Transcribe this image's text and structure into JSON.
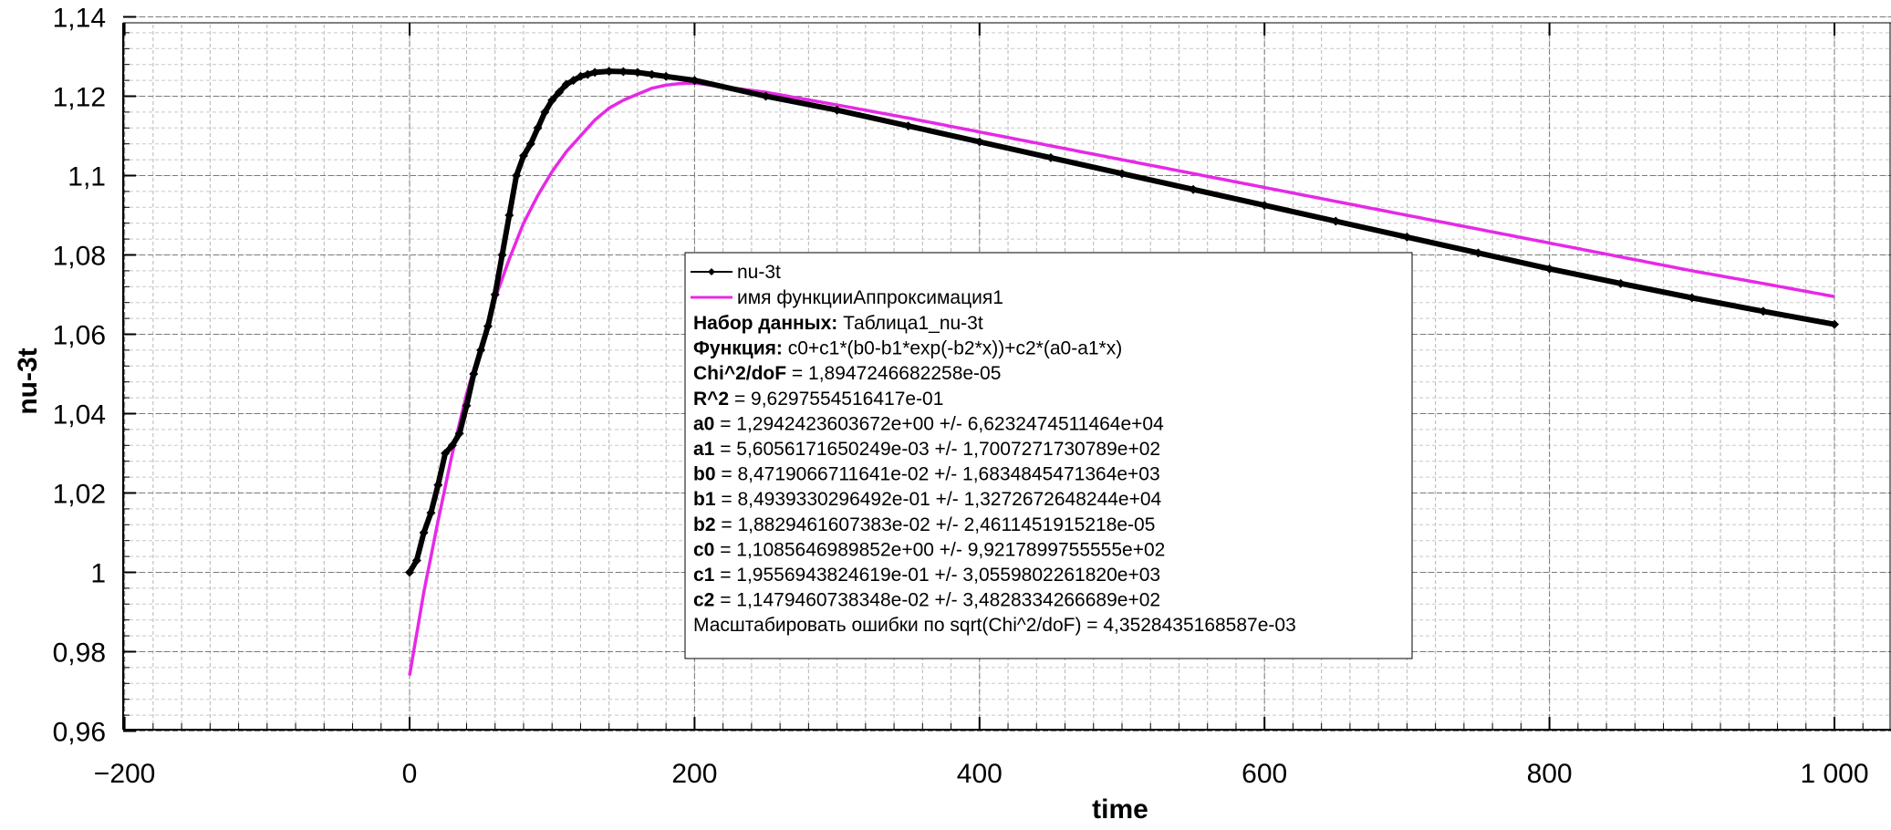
{
  "chart_data": {
    "type": "line",
    "xlabel": "time",
    "ylabel": "nu-3t",
    "xlim": [
      -200,
      1040
    ],
    "ylim": [
      0.96,
      1.14
    ],
    "x_ticks": [
      -200,
      0,
      200,
      400,
      600,
      800,
      1000
    ],
    "x_tick_labels": [
      "−200",
      "0",
      "200",
      "400",
      "600",
      "800",
      "1 000"
    ],
    "y_ticks": [
      0.96,
      0.98,
      1.0,
      1.02,
      1.04,
      1.06,
      1.08,
      1.1,
      1.12,
      1.14
    ],
    "y_tick_labels": [
      "0,96",
      "0,98",
      "1",
      "1,02",
      "1,04",
      "1,06",
      "1,08",
      "1,1",
      "1,12",
      "1,14"
    ],
    "grid": true,
    "legend_position": "center",
    "series": [
      {
        "name": "nu-3t",
        "color": "#000000",
        "marker": "diamond",
        "x": [
          0,
          5,
          10,
          15,
          20,
          25,
          30,
          35,
          40,
          45,
          50,
          55,
          60,
          65,
          70,
          75,
          80,
          85,
          90,
          95,
          100,
          105,
          110,
          115,
          120,
          125,
          130,
          140,
          150,
          160,
          170,
          180,
          200,
          250,
          300,
          350,
          400,
          450,
          500,
          550,
          600,
          650,
          700,
          750,
          800,
          850,
          900,
          950,
          1000
        ],
        "y": [
          1.0,
          1.003,
          1.01,
          1.015,
          1.022,
          1.03,
          1.032,
          1.035,
          1.042,
          1.05,
          1.056,
          1.062,
          1.07,
          1.08,
          1.09,
          1.1,
          1.105,
          1.108,
          1.112,
          1.116,
          1.119,
          1.121,
          1.123,
          1.124,
          1.125,
          1.1255,
          1.126,
          1.1263,
          1.1262,
          1.126,
          1.1255,
          1.125,
          1.124,
          1.12,
          1.1165,
          1.1125,
          1.1085,
          1.1045,
          1.1005,
          1.0965,
          1.0925,
          1.0885,
          1.0845,
          1.0805,
          1.0765,
          1.0728,
          1.0692,
          1.0658,
          1.0625
        ]
      },
      {
        "name": "имя функцииАппроксимация1",
        "color": "#e629e6",
        "x": [
          0,
          10,
          20,
          30,
          40,
          50,
          60,
          70,
          80,
          90,
          100,
          110,
          120,
          130,
          140,
          150,
          160,
          170,
          180,
          190,
          200,
          250,
          300,
          350,
          400,
          450,
          500,
          550,
          600,
          650,
          700,
          750,
          800,
          850,
          900,
          950,
          1000
        ],
        "y": [
          0.974,
          0.995,
          1.013,
          1.03,
          1.045,
          1.057,
          1.069,
          1.079,
          1.088,
          1.095,
          1.101,
          1.106,
          1.11,
          1.114,
          1.117,
          1.119,
          1.1205,
          1.122,
          1.1228,
          1.1232,
          1.1233,
          1.121,
          1.1178,
          1.1145,
          1.111,
          1.1075,
          1.104,
          1.1005,
          1.097,
          1.0935,
          1.09,
          1.0865,
          1.083,
          1.0795,
          1.076,
          1.0728,
          1.0695
        ]
      }
    ]
  },
  "legend": {
    "series_labels": [
      "nu-3t",
      "имя функцииАппроксимация1"
    ],
    "fit_lines": [
      {
        "bold": "Набор данных:",
        "text": " Таблица1_nu-3t"
      },
      {
        "bold": "Функция:",
        "text": " c0+c1*(b0-b1*exp(-b2*x))+c2*(a0-a1*x)"
      },
      {
        "bold": "Chi^2/doF",
        "text": " = 1,8947246682258e-05"
      },
      {
        "bold": "R^2",
        "text": " = 9,6297554516417e-01"
      },
      {
        "bold": "a0",
        "text": " = 1,2942423603672e+00 +/- 6,6232474511464e+04"
      },
      {
        "bold": "a1",
        "text": " = 5,6056171650249e-03 +/- 1,7007271730789e+02"
      },
      {
        "bold": "b0",
        "text": " = 8,4719066711641e-02 +/- 1,6834845471364e+03"
      },
      {
        "bold": "b1",
        "text": " = 8,4939330296492e-01 +/- 1,3272672648244e+04"
      },
      {
        "bold": "b2",
        "text": " = 1,8829461607383e-02 +/- 2,4611451915218e-05"
      },
      {
        "bold": "c0",
        "text": " = 1,1085646989852e+00 +/- 9,9217899755555e+02"
      },
      {
        "bold": "c1",
        "text": " = 1,9556943824619e-01 +/- 3,0559802261820e+03"
      },
      {
        "bold": "c2",
        "text": " = 1,1479460738348e-02 +/- 3,4828334266689e+02"
      },
      {
        "bold": "",
        "text": "Масштабировать ошибки по sqrt(Chi^2/doF) = 4,3528435168587e-03"
      }
    ]
  }
}
